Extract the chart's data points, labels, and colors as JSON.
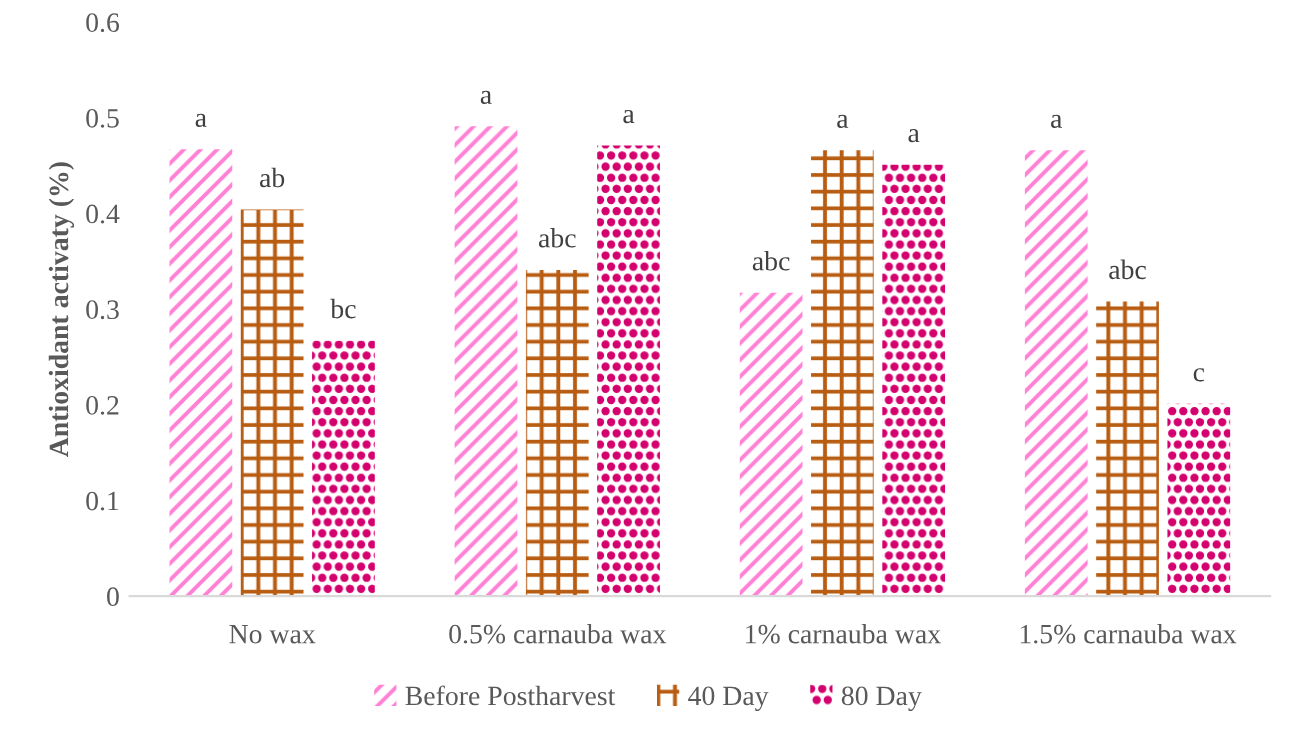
{
  "chart_data": {
    "type": "bar",
    "ylabel": "Antioxidant activaty (%)",
    "categories": [
      "No wax",
      "0.5% carnauba wax",
      "1% carnauba wax",
      "1.5% carnauba wax"
    ],
    "series": [
      {
        "name": "Before Postharvest",
        "color": "#ff80d5",
        "values": [
          0.467,
          0.491,
          0.317,
          0.466
        ],
        "value_labels": [
          "a",
          "a",
          "abc",
          "a"
        ]
      },
      {
        "name": "40 Day",
        "color": "#b85c12",
        "values": [
          0.404,
          0.341,
          0.466,
          0.308
        ],
        "value_labels": [
          "ab",
          "abc",
          "a",
          "abc"
        ]
      },
      {
        "name": "80 Day",
        "color": "#d4006e",
        "values": [
          0.267,
          0.471,
          0.451,
          0.201
        ],
        "value_labels": [
          "bc",
          "a",
          "a",
          "c"
        ]
      }
    ],
    "ylim": [
      0,
      0.6
    ],
    "yticks": [
      0,
      0.1,
      0.2,
      0.3,
      0.4,
      0.5,
      0.6
    ],
    "grid": false,
    "legend": "bottom"
  }
}
